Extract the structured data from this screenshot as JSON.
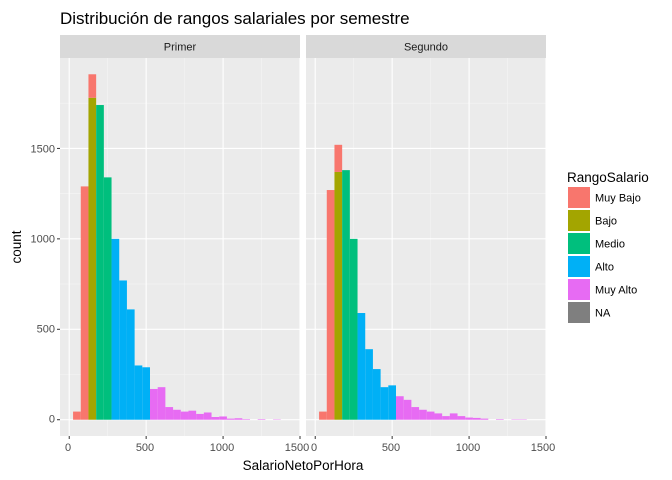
{
  "chart_data": {
    "type": "bar",
    "chart_subtype": "stacked histogram, faceted",
    "title": "Distribución de rangos salariales por semestre",
    "xlabel": "SalarioNetoPorHora",
    "ylabel": "count",
    "xlim": [
      -60,
      1500
    ],
    "ylim": [
      -90,
      2000
    ],
    "x_ticks": [
      0,
      500,
      1000,
      1500
    ],
    "y_ticks": [
      0,
      500,
      1000,
      1500
    ],
    "x_tick_labels": [
      "0",
      "500",
      "1000",
      "1500"
    ],
    "y_tick_labels": [
      "0",
      "500",
      "1000",
      "1500"
    ],
    "grid": true,
    "legend": {
      "title": "RangoSalario",
      "position": "right",
      "entries": [
        {
          "name": "Muy Bajo",
          "color": "#F8766D"
        },
        {
          "name": "Bajo",
          "color": "#A3A500"
        },
        {
          "name": "Medio",
          "color": "#00BF7D"
        },
        {
          "name": "Alto",
          "color": "#00B0F6"
        },
        {
          "name": "Muy Alto",
          "color": "#E76BF3"
        },
        {
          "name": "NA",
          "color": "#7F7F7F"
        }
      ]
    },
    "bin_width": 50,
    "panels": [
      {
        "label": "Primer",
        "bars": [
          {
            "x0": 25,
            "x1": 75,
            "segments": [
              {
                "group": "Muy Bajo",
                "count": 45
              }
            ]
          },
          {
            "x0": 75,
            "x1": 125,
            "segments": [
              {
                "group": "Muy Bajo",
                "count": 1290
              }
            ]
          },
          {
            "x0": 125,
            "x1": 175,
            "segments": [
              {
                "group": "Bajo",
                "count": 1780
              },
              {
                "group": "Muy Bajo",
                "count": 130
              }
            ]
          },
          {
            "x0": 175,
            "x1": 225,
            "segments": [
              {
                "group": "Medio",
                "count": 1740
              }
            ]
          },
          {
            "x0": 225,
            "x1": 275,
            "segments": [
              {
                "group": "Medio",
                "count": 1340
              }
            ]
          },
          {
            "x0": 275,
            "x1": 325,
            "segments": [
              {
                "group": "Alto",
                "count": 1000
              }
            ]
          },
          {
            "x0": 325,
            "x1": 375,
            "segments": [
              {
                "group": "Alto",
                "count": 770
              }
            ]
          },
          {
            "x0": 375,
            "x1": 425,
            "segments": [
              {
                "group": "Alto",
                "count": 610
              }
            ]
          },
          {
            "x0": 425,
            "x1": 475,
            "segments": [
              {
                "group": "Alto",
                "count": 300
              }
            ]
          },
          {
            "x0": 475,
            "x1": 525,
            "segments": [
              {
                "group": "Alto",
                "count": 290
              }
            ]
          },
          {
            "x0": 525,
            "x1": 575,
            "segments": [
              {
                "group": "Muy Alto",
                "count": 170
              }
            ]
          },
          {
            "x0": 575,
            "x1": 625,
            "segments": [
              {
                "group": "Muy Alto",
                "count": 180
              }
            ]
          },
          {
            "x0": 625,
            "x1": 675,
            "segments": [
              {
                "group": "Muy Alto",
                "count": 70
              }
            ]
          },
          {
            "x0": 675,
            "x1": 725,
            "segments": [
              {
                "group": "Muy Alto",
                "count": 55
              }
            ]
          },
          {
            "x0": 725,
            "x1": 775,
            "segments": [
              {
                "group": "Muy Alto",
                "count": 45
              }
            ]
          },
          {
            "x0": 775,
            "x1": 825,
            "segments": [
              {
                "group": "Muy Alto",
                "count": 50
              }
            ]
          },
          {
            "x0": 825,
            "x1": 875,
            "segments": [
              {
                "group": "Muy Alto",
                "count": 32
              }
            ]
          },
          {
            "x0": 875,
            "x1": 925,
            "segments": [
              {
                "group": "Muy Alto",
                "count": 40
              }
            ]
          },
          {
            "x0": 925,
            "x1": 975,
            "segments": [
              {
                "group": "Muy Alto",
                "count": 15
              }
            ]
          },
          {
            "x0": 975,
            "x1": 1025,
            "segments": [
              {
                "group": "Muy Alto",
                "count": 18
              }
            ]
          },
          {
            "x0": 1025,
            "x1": 1075,
            "segments": [
              {
                "group": "Muy Alto",
                "count": 6
              }
            ]
          },
          {
            "x0": 1075,
            "x1": 1125,
            "segments": [
              {
                "group": "Muy Alto",
                "count": 8
              }
            ]
          },
          {
            "x0": 1125,
            "x1": 1175,
            "segments": [
              {
                "group": "Muy Alto",
                "count": 3
              }
            ]
          },
          {
            "x0": 1225,
            "x1": 1275,
            "segments": [
              {
                "group": "Muy Alto",
                "count": 3
              }
            ]
          },
          {
            "x0": 1325,
            "x1": 1375,
            "segments": [
              {
                "group": "Muy Alto",
                "count": 2
              }
            ]
          }
        ]
      },
      {
        "label": "Segundo",
        "bars": [
          {
            "x0": 25,
            "x1": 75,
            "segments": [
              {
                "group": "Muy Bajo",
                "count": 45
              }
            ]
          },
          {
            "x0": 75,
            "x1": 125,
            "segments": [
              {
                "group": "Muy Bajo",
                "count": 1270
              }
            ]
          },
          {
            "x0": 125,
            "x1": 175,
            "segments": [
              {
                "group": "Bajo",
                "count": 1370
              },
              {
                "group": "Muy Bajo",
                "count": 150
              }
            ]
          },
          {
            "x0": 175,
            "x1": 225,
            "segments": [
              {
                "group": "Medio",
                "count": 1380
              }
            ]
          },
          {
            "x0": 225,
            "x1": 275,
            "segments": [
              {
                "group": "Medio",
                "count": 1000
              }
            ]
          },
          {
            "x0": 275,
            "x1": 325,
            "segments": [
              {
                "group": "Alto",
                "count": 590
              }
            ]
          },
          {
            "x0": 325,
            "x1": 375,
            "segments": [
              {
                "group": "Alto",
                "count": 390
              }
            ]
          },
          {
            "x0": 375,
            "x1": 425,
            "segments": [
              {
                "group": "Alto",
                "count": 280
              }
            ]
          },
          {
            "x0": 425,
            "x1": 475,
            "segments": [
              {
                "group": "Alto",
                "count": 180
              }
            ]
          },
          {
            "x0": 475,
            "x1": 525,
            "segments": [
              {
                "group": "Alto",
                "count": 190
              }
            ]
          },
          {
            "x0": 525,
            "x1": 575,
            "segments": [
              {
                "group": "Muy Alto",
                "count": 130
              }
            ]
          },
          {
            "x0": 575,
            "x1": 625,
            "segments": [
              {
                "group": "Muy Alto",
                "count": 110
              }
            ]
          },
          {
            "x0": 625,
            "x1": 675,
            "segments": [
              {
                "group": "Muy Alto",
                "count": 70
              }
            ]
          },
          {
            "x0": 675,
            "x1": 725,
            "segments": [
              {
                "group": "Muy Alto",
                "count": 55
              }
            ]
          },
          {
            "x0": 725,
            "x1": 775,
            "segments": [
              {
                "group": "Muy Alto",
                "count": 45
              }
            ]
          },
          {
            "x0": 775,
            "x1": 825,
            "segments": [
              {
                "group": "Muy Alto",
                "count": 35
              }
            ]
          },
          {
            "x0": 825,
            "x1": 875,
            "segments": [
              {
                "group": "Muy Alto",
                "count": 20
              }
            ]
          },
          {
            "x0": 875,
            "x1": 925,
            "segments": [
              {
                "group": "Muy Alto",
                "count": 35
              }
            ]
          },
          {
            "x0": 925,
            "x1": 975,
            "segments": [
              {
                "group": "Muy Alto",
                "count": 20
              }
            ]
          },
          {
            "x0": 975,
            "x1": 1025,
            "segments": [
              {
                "group": "Muy Alto",
                "count": 12
              }
            ]
          },
          {
            "x0": 1025,
            "x1": 1075,
            "segments": [
              {
                "group": "Muy Alto",
                "count": 10
              }
            ]
          },
          {
            "x0": 1075,
            "x1": 1125,
            "segments": [
              {
                "group": "Muy Alto",
                "count": 6
              }
            ]
          },
          {
            "x0": 1175,
            "x1": 1225,
            "segments": [
              {
                "group": "Muy Alto",
                "count": 3
              }
            ]
          },
          {
            "x0": 1275,
            "x1": 1325,
            "segments": [
              {
                "group": "Muy Alto",
                "count": 2
              }
            ]
          },
          {
            "x0": 1325,
            "x1": 1375,
            "segments": [
              {
                "group": "Muy Alto",
                "count": 2
              }
            ]
          }
        ]
      }
    ]
  }
}
